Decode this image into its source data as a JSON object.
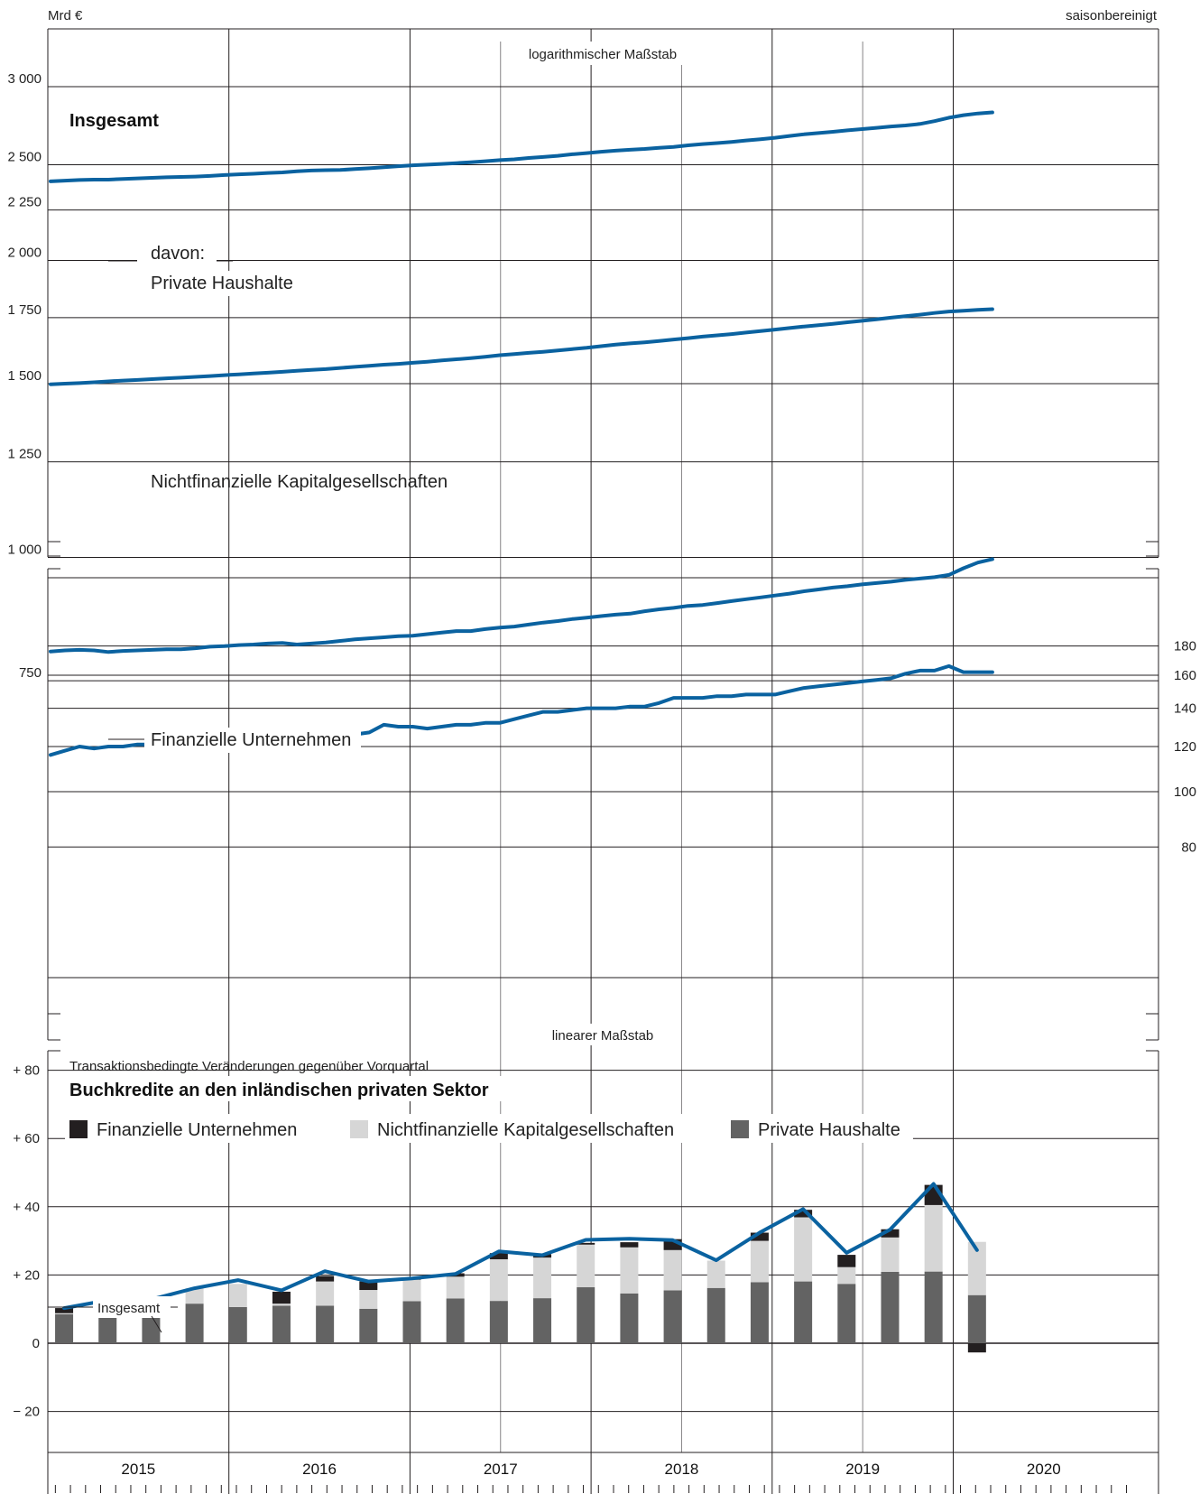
{
  "header": {
    "unit_left": "Mrd €",
    "unit_right": "saisonbereinigt"
  },
  "colors": {
    "line": "#0a62a0",
    "fin": "#231f20",
    "nfc": "#d6d6d6",
    "hh": "#636363",
    "grid": "#231f20"
  },
  "chart_data": [
    {
      "type": "line",
      "note": "logarithmischer Maßstab",
      "scale": "log",
      "yticks": [
        750,
        1000,
        1250,
        1500,
        1750,
        2000,
        2250,
        2500,
        3000
      ],
      "ytick_labels": [
        "750",
        "1 000",
        "1 250",
        "1 500",
        "1 750",
        "2 000",
        "2 250",
        "2 500",
        "3 000"
      ],
      "ylim": [
        700,
        3400
      ],
      "x": [
        "2015-01",
        "2015-02",
        "2015-03",
        "2015-04",
        "2015-05",
        "2015-06",
        "2015-07",
        "2015-08",
        "2015-09",
        "2015-10",
        "2015-11",
        "2015-12",
        "2016-01",
        "2016-02",
        "2016-03",
        "2016-04",
        "2016-05",
        "2016-06",
        "2016-07",
        "2016-08",
        "2016-09",
        "2016-10",
        "2016-11",
        "2016-12",
        "2017-01",
        "2017-02",
        "2017-03",
        "2017-04",
        "2017-05",
        "2017-06",
        "2017-07",
        "2017-08",
        "2017-09",
        "2017-10",
        "2017-11",
        "2017-12",
        "2018-01",
        "2018-02",
        "2018-03",
        "2018-04",
        "2018-05",
        "2018-06",
        "2018-07",
        "2018-08",
        "2018-09",
        "2018-10",
        "2018-11",
        "2018-12",
        "2019-01",
        "2019-02",
        "2019-03",
        "2019-04",
        "2019-05",
        "2019-06",
        "2019-07",
        "2019-08",
        "2019-09",
        "2019-10",
        "2019-11",
        "2019-12",
        "2020-01",
        "2020-02",
        "2020-03",
        "2020-04",
        "2020-05",
        "2020-06"
      ],
      "series": [
        {
          "name": "Insgesamt",
          "values": [
            2405,
            2409,
            2413,
            2415,
            2415,
            2419,
            2422,
            2425,
            2428,
            2430,
            2432,
            2436,
            2441,
            2445,
            2448,
            2453,
            2456,
            2462,
            2467,
            2469,
            2470,
            2475,
            2480,
            2486,
            2492,
            2497,
            2501,
            2505,
            2510,
            2515,
            2521,
            2527,
            2532,
            2540,
            2546,
            2553,
            2562,
            2569,
            2577,
            2584,
            2589,
            2594,
            2601,
            2607,
            2616,
            2624,
            2630,
            2637,
            2646,
            2654,
            2663,
            2674,
            2684,
            2692,
            2700,
            2709,
            2717,
            2725,
            2734,
            2740,
            2750,
            2768,
            2790,
            2807,
            2818,
            2825
          ]
        },
        {
          "name": "Private Haushalte",
          "values": [
            1498,
            1500,
            1502,
            1505,
            1508,
            1511,
            1513,
            1516,
            1519,
            1521,
            1524,
            1527,
            1530,
            1533,
            1536,
            1539,
            1542,
            1546,
            1549,
            1552,
            1556,
            1560,
            1564,
            1568,
            1571,
            1575,
            1579,
            1584,
            1588,
            1592,
            1597,
            1603,
            1607,
            1612,
            1616,
            1621,
            1626,
            1631,
            1637,
            1643,
            1648,
            1652,
            1657,
            1663,
            1668,
            1674,
            1679,
            1684,
            1690,
            1696,
            1702,
            1708,
            1714,
            1719,
            1725,
            1731,
            1737,
            1743,
            1750,
            1756,
            1762,
            1769,
            1775,
            1778,
            1782,
            1785
          ]
        },
        {
          "name": "Nichtfinanzielle Kapitalgesellschaften",
          "values": [
            803,
            805,
            806,
            805,
            802,
            804,
            805,
            806,
            807,
            807,
            809,
            812,
            813,
            815,
            816,
            818,
            819,
            816,
            818,
            820,
            823,
            826,
            828,
            830,
            832,
            833,
            836,
            839,
            842,
            842,
            846,
            849,
            851,
            855,
            859,
            862,
            866,
            869,
            872,
            875,
            877,
            882,
            886,
            889,
            893,
            895,
            899,
            903,
            907,
            911,
            915,
            919,
            924,
            928,
            932,
            935,
            939,
            942,
            945,
            949,
            952,
            955,
            960,
            975,
            988,
            996
          ]
        }
      ]
    },
    {
      "type": "line",
      "scale": "log",
      "yticks": [
        80,
        100,
        120,
        140,
        160,
        180
      ],
      "ytick_labels": [
        "80",
        "100",
        "120",
        "140",
        "160",
        "180"
      ],
      "ylim": [
        70,
        190
      ],
      "x": [
        "2015-01",
        "2015-02",
        "2015-03",
        "2015-04",
        "2015-05",
        "2015-06",
        "2015-07",
        "2015-08",
        "2015-09",
        "2015-10",
        "2015-11",
        "2015-12",
        "2016-01",
        "2016-02",
        "2016-03",
        "2016-04",
        "2016-05",
        "2016-06",
        "2016-07",
        "2016-08",
        "2016-09",
        "2016-10",
        "2016-11",
        "2016-12",
        "2017-01",
        "2017-02",
        "2017-03",
        "2017-04",
        "2017-05",
        "2017-06",
        "2017-07",
        "2017-08",
        "2017-09",
        "2017-10",
        "2017-11",
        "2017-12",
        "2018-01",
        "2018-02",
        "2018-03",
        "2018-04",
        "2018-05",
        "2018-06",
        "2018-07",
        "2018-08",
        "2018-09",
        "2018-10",
        "2018-11",
        "2018-12",
        "2019-01",
        "2019-02",
        "2019-03",
        "2019-04",
        "2019-05",
        "2019-06",
        "2019-07",
        "2019-08",
        "2019-09",
        "2019-10",
        "2019-11",
        "2019-12",
        "2020-01",
        "2020-02",
        "2020-03",
        "2020-04",
        "2020-05",
        "2020-06"
      ],
      "series": [
        {
          "name": "Finanzielle Unternehmen",
          "values": [
            116,
            118,
            120,
            119,
            120,
            120,
            121,
            121,
            121,
            120,
            121,
            123,
            121,
            120,
            121,
            122,
            125,
            126,
            124,
            125,
            126,
            126,
            127,
            131,
            130,
            130,
            129,
            130,
            131,
            131,
            132,
            132,
            134,
            136,
            138,
            138,
            139,
            140,
            140,
            140,
            141,
            141,
            143,
            146,
            146,
            146,
            147,
            147,
            148,
            148,
            148,
            150,
            152,
            153,
            154,
            155,
            156,
            157,
            158,
            161,
            163,
            163,
            166,
            162,
            162,
            162
          ]
        }
      ]
    },
    {
      "type": "bar",
      "stacked": true,
      "note": "linearer Maßstab",
      "subtitle": "Transaktionsbedingte Veränderungen gegenüber Vorquartal",
      "title": "Buchkredite an den inländischen privaten Sektor",
      "yticks": [
        -20,
        0,
        20,
        40,
        60,
        80
      ],
      "ytick_labels": [
        "− 20",
        "0",
        "+ 20",
        "+ 40",
        "+ 60",
        "+ 80"
      ],
      "ylim": [
        -30,
        95
      ],
      "categories": [
        "2015 Q1",
        "2015 Q2",
        "2015 Q3",
        "2015 Q4",
        "2016 Q1",
        "2016 Q2",
        "2016 Q3",
        "2016 Q4",
        "2017 Q1",
        "2017 Q2",
        "2017 Q3",
        "2017 Q4",
        "2018 Q1",
        "2018 Q2",
        "2018 Q3",
        "2018 Q4",
        "2019 Q1",
        "2019 Q2",
        "2019 Q3",
        "2019 Q4",
        "2020 Q1",
        "2020 Q2"
      ],
      "x_labels": [
        "2015",
        "2016",
        "2017",
        "2018",
        "2019",
        "2020"
      ],
      "series": [
        {
          "name": "Finanzielle Unternehmen",
          "values": [
            1.5,
            2.3,
            0.0,
            0.0,
            0.0,
            3.5,
            1.6,
            2.5,
            0.3,
            1.0,
            1.8,
            1.0,
            0.5,
            1.5,
            3.2,
            0.0,
            2.4,
            2.2,
            3.6,
            2.4,
            5.9,
            -2.7
          ]
        },
        {
          "name": "Nichtfinanzielle Kapitalgesellschaften",
          "values": [
            0.3,
            0.8,
            0.0,
            4.5,
            6.8,
            0.6,
            7.1,
            5.5,
            6.3,
            6.4,
            12.2,
            11.9,
            12.5,
            13.5,
            11.8,
            8.0,
            12.1,
            18.8,
            4.9,
            10.1,
            19.5,
            15.6
          ]
        },
        {
          "name": "Private Haushalte",
          "values": [
            8.5,
            9.5,
            12.1,
            11.6,
            10.6,
            11.0,
            11.0,
            10.1,
            12.3,
            13.1,
            12.4,
            13.2,
            16.4,
            14.6,
            15.5,
            16.2,
            17.9,
            18.1,
            17.4,
            20.9,
            21.0,
            14.1
          ]
        },
        {
          "name": "Insgesamt",
          "values": [
            10.3,
            12.6,
            12.8,
            16.1,
            18.5,
            15.5,
            21.1,
            18.1,
            19.0,
            20.3,
            26.9,
            25.8,
            30.3,
            30.6,
            30.2,
            24.3,
            32.4,
            39.3,
            26.5,
            33.3,
            46.7,
            27.3
          ]
        }
      ]
    }
  ]
}
